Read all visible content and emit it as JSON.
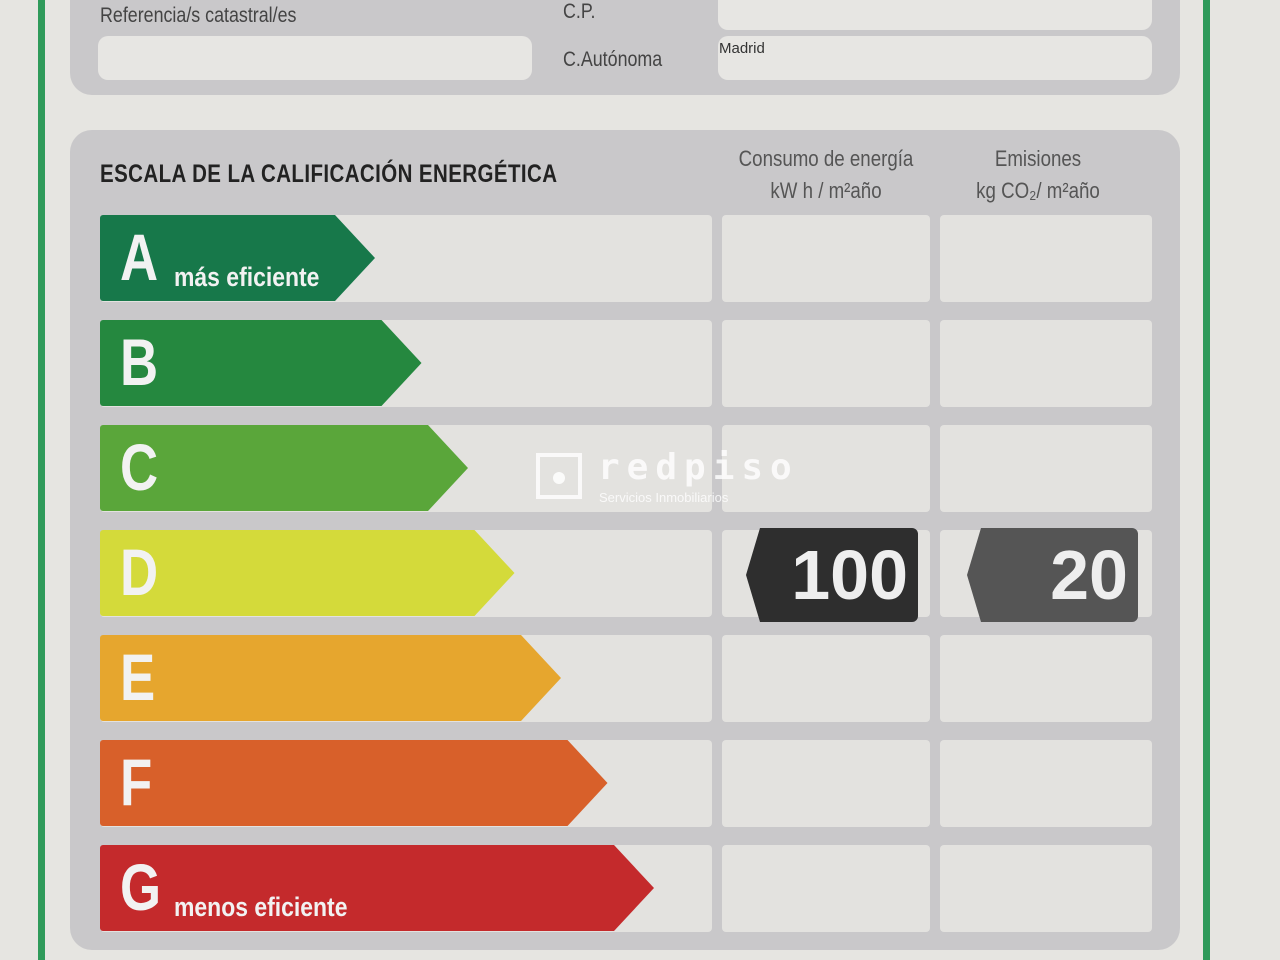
{
  "header": {
    "ref_label": "Referencia/s catastral/es",
    "cp_label": "C.P.",
    "ca_label": "C.Autónoma",
    "ca_value": "Madrid"
  },
  "scale": {
    "title": "ESCALA DE LA CALIFICACIÓN ENERGÉTICA",
    "col1": {
      "line1": "Consumo de energía",
      "line2": "kW h / m²año"
    },
    "col2": {
      "line1": "Emisiones",
      "line2": "kg CO₂/ m²año"
    },
    "rows": [
      {
        "letter": "A",
        "sub": "más eficiente",
        "color": "#17784a"
      },
      {
        "letter": "B",
        "sub": "",
        "color": "#25883f"
      },
      {
        "letter": "C",
        "sub": "",
        "color": "#5aa63a"
      },
      {
        "letter": "D",
        "sub": "",
        "color": "#d4da3a"
      },
      {
        "letter": "E",
        "sub": "",
        "color": "#e6a62e"
      },
      {
        "letter": "F",
        "sub": "",
        "color": "#d8602a"
      },
      {
        "letter": "G",
        "sub": "menos eficiente",
        "color": "#c42a2c"
      }
    ],
    "rating_row": "D",
    "consumption": "100",
    "emissions": "20"
  },
  "watermark": {
    "brand": "redpiso",
    "tagline": "Servicios Inmobiliarios"
  }
}
